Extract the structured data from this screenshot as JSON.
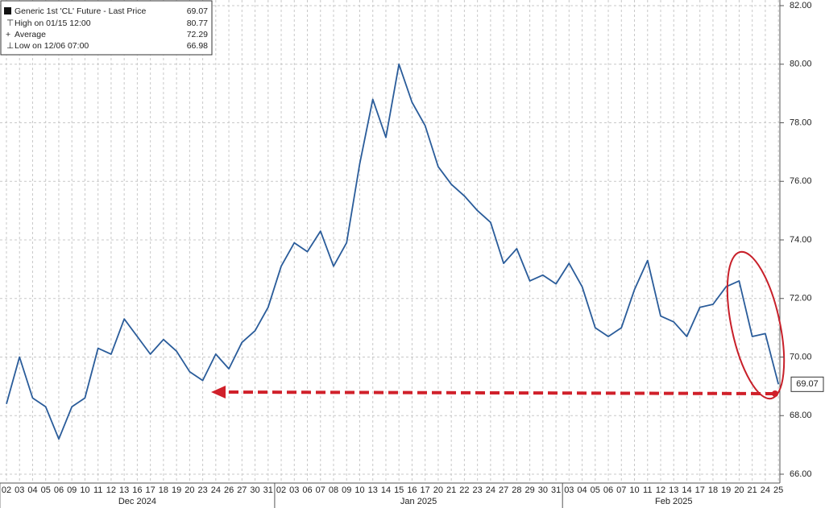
{
  "chart_data": {
    "type": "line",
    "series": [
      {
        "name": "Generic 1st 'CL' Future - Last Price",
        "color": "#2a5c9a",
        "values": [
          68.4,
          70.0,
          68.6,
          68.3,
          67.2,
          68.3,
          68.6,
          70.3,
          70.1,
          71.3,
          70.7,
          70.1,
          70.6,
          70.2,
          69.5,
          69.2,
          70.1,
          69.6,
          70.5,
          70.9,
          71.7,
          73.1,
          73.9,
          73.6,
          74.3,
          73.1,
          73.9,
          76.6,
          78.8,
          77.5,
          80.0,
          78.7,
          77.9,
          76.5,
          75.9,
          75.5,
          75.0,
          74.6,
          73.2,
          73.7,
          72.6,
          72.8,
          72.5,
          73.2,
          72.4,
          71.0,
          70.7,
          71.0,
          72.3,
          73.3,
          71.4,
          71.2,
          70.7,
          71.7,
          71.8,
          72.4,
          72.6,
          70.7,
          70.8,
          69.07
        ]
      }
    ],
    "last_price": 69.07,
    "legend_stats": [
      {
        "label": "High on 01/15 12:00",
        "value": 80.77
      },
      {
        "label": "Average",
        "value": 72.29
      },
      {
        "label": "Low on 12/06 07:00",
        "value": 66.98
      }
    ],
    "categories": [
      "02",
      "03",
      "04",
      "05",
      "06",
      "09",
      "10",
      "11",
      "12",
      "13",
      "16",
      "17",
      "18",
      "19",
      "20",
      "23",
      "24",
      "26",
      "27",
      "30",
      "31",
      "02",
      "03",
      "06",
      "07",
      "08",
      "09",
      "10",
      "13",
      "14",
      "15",
      "16",
      "17",
      "20",
      "21",
      "22",
      "23",
      "24",
      "27",
      "28",
      "29",
      "30",
      "31",
      "03",
      "04",
      "05",
      "06",
      "07",
      "10",
      "11",
      "12",
      "13",
      "14",
      "17",
      "18",
      "19",
      "20",
      "21",
      "24",
      "25"
    ],
    "months": [
      "Dec 2024",
      "Jan 2025",
      "Feb 2025"
    ],
    "ylim": [
      66,
      82
    ],
    "yticks": [
      {
        "value": 66,
        "label": "66.00"
      },
      {
        "value": 68,
        "label": "68.00"
      },
      {
        "value": 70,
        "label": "70.00"
      },
      {
        "value": 72,
        "label": "72.00"
      },
      {
        "value": 74,
        "label": "74.00"
      },
      {
        "value": 76,
        "label": "76.00"
      },
      {
        "value": 78,
        "label": "78.00"
      },
      {
        "value": 80,
        "label": "80.00"
      },
      {
        "value": 82,
        "label": "82.00"
      }
    ],
    "grid": true
  }
}
